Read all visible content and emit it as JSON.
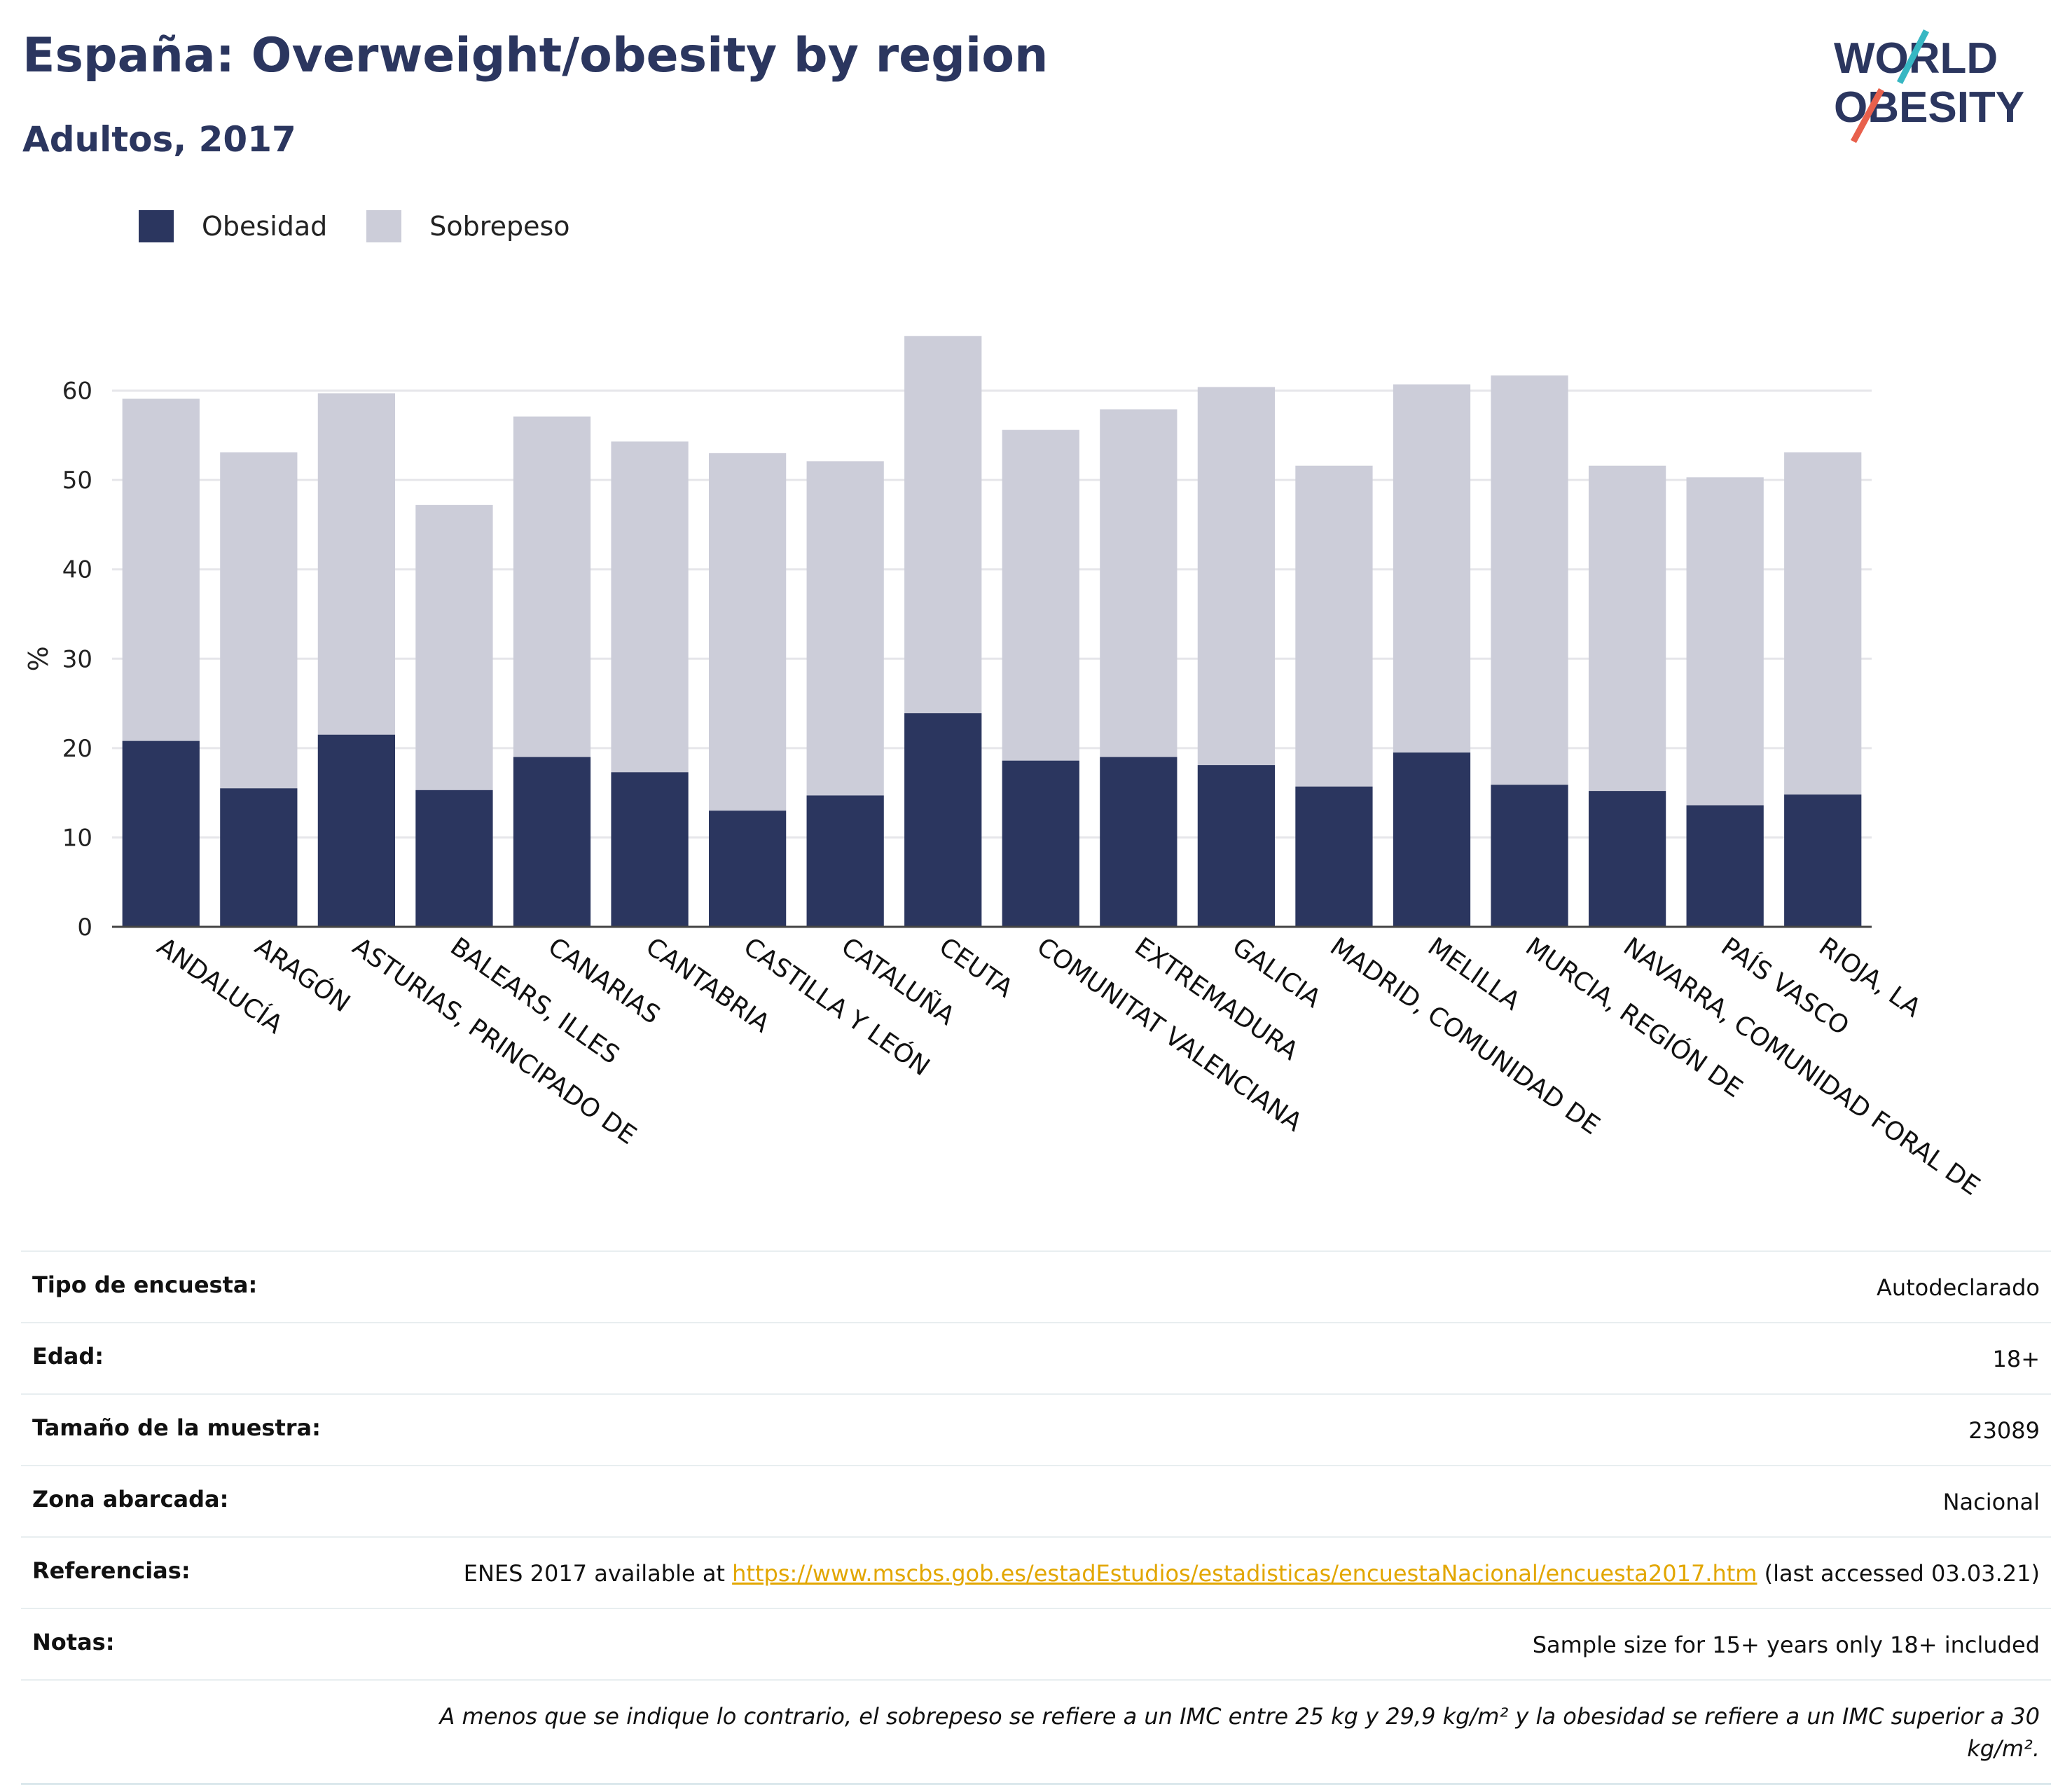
{
  "header": {
    "title": "España: Overweight/obesity by region",
    "subtitle": "Adultos, 2017",
    "logo_line1": "WORLD",
    "logo_line2": "OBESITY"
  },
  "legend": [
    {
      "label": "Obesidad",
      "color": "#2b365f"
    },
    {
      "label": "Sobrepeso",
      "color": "#cccdd9"
    }
  ],
  "colors": {
    "obesity": "#2b365f",
    "overweight": "#cccdd9",
    "accent_link": "#e2a600",
    "logo_teal": "#37b7c3",
    "logo_red": "#e8604c"
  },
  "chart_data": {
    "type": "bar",
    "stacked": true,
    "ylabel": "%",
    "xlabel": "",
    "ylim": [
      0,
      70
    ],
    "yticks": [
      0,
      10,
      20,
      30,
      40,
      50,
      60
    ],
    "grid": true,
    "legend_position": "top-left",
    "categories": [
      "ANDALUCÍA",
      "ARAGÓN",
      "ASTURIAS, PRINCIPADO DE",
      "BALEARS, ILLES",
      "CANARIAS",
      "CANTABRIA",
      "CASTILLA Y LEÓN",
      "CATALUÑA",
      "CEUTA",
      "COMUNITAT VALENCIANA",
      "EXTREMADURA",
      "GALICIA",
      "MADRID, COMUNIDAD DE",
      "MELILLA",
      "MURCIA, REGIÓN DE",
      "NAVARRA, COMUNIDAD FORAL DE",
      "PAÍS VASCO",
      "RIOJA, LA"
    ],
    "series": [
      {
        "name": "Obesidad",
        "values": [
          20.8,
          15.5,
          21.5,
          15.3,
          19.0,
          17.3,
          13.0,
          14.7,
          23.9,
          18.6,
          19.0,
          18.1,
          15.7,
          19.5,
          15.9,
          15.2,
          13.6,
          14.8
        ]
      },
      {
        "name": "Sobrepeso",
        "values": [
          38.3,
          37.6,
          38.2,
          31.9,
          38.1,
          37.0,
          40.0,
          37.4,
          42.2,
          37.0,
          38.9,
          42.3,
          35.9,
          41.2,
          45.8,
          36.4,
          36.7,
          38.3
        ]
      }
    ]
  },
  "info": {
    "rows": [
      {
        "key": "Tipo de encuesta:",
        "value": "Autodeclarado"
      },
      {
        "key": "Edad:",
        "value": "18+"
      },
      {
        "key": "Tamaño de la muestra:",
        "value": "23089"
      },
      {
        "key": "Zona abarcada:",
        "value": "Nacional"
      }
    ],
    "ref_key": "Referencias:",
    "ref_prefix": "ENES 2017 available at ",
    "ref_link": "https://www.mscbs.gob.es/estadEstudios/estadisticas/encuestaNacional/encuesta2017.htm",
    "ref_suffix": " (last accessed 03.03.21)",
    "notes_key": "Notas:",
    "notes_value": "Sample size for 15+ years only 18+ included",
    "footnote": "A menos que se indique lo contrario, el sobrepeso se refiere a un IMC entre 25 kg y 29,9 kg/m² y la obesidad se refiere a un IMC superior a 30 kg/m²."
  }
}
